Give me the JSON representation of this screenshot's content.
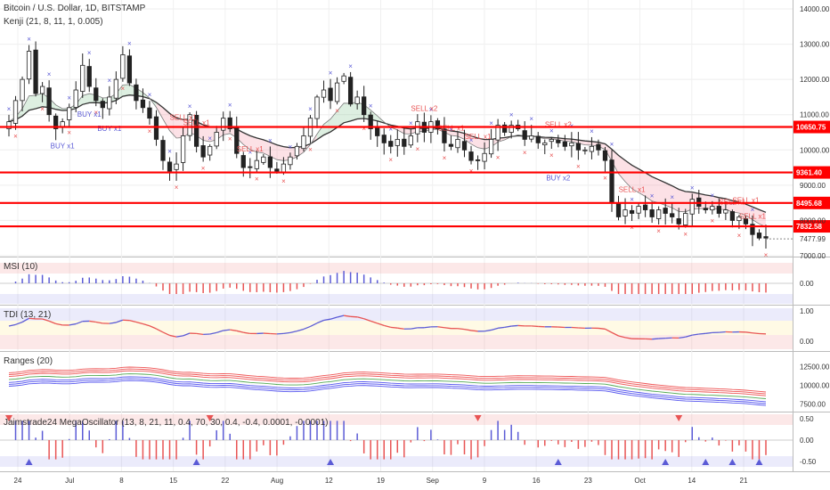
{
  "chart_data": {
    "type": "candlestick",
    "title": "Bitcoin / U.S. Dollar, 1D, BITSTAMP",
    "indicator_label": "Kenji (21, 8, 11, 1, 0.005)",
    "x_ticks": [
      "24",
      "Jul",
      "8",
      "15",
      "22",
      "Aug",
      "12",
      "19",
      "Sep",
      "9",
      "16",
      "23",
      "Oct",
      "14",
      "21"
    ],
    "y_ticks": [
      "14000.00",
      "13000.00",
      "12000.00",
      "11000.00",
      "10000.00",
      "9000.00",
      "8000.00",
      "7000.00"
    ],
    "ylim": [
      7000,
      14000
    ],
    "current_price": "7477.99",
    "levels": [
      "10650.75",
      "9361.40",
      "8495.68",
      "7832.58"
    ],
    "colors": {
      "up": "#26a69a",
      "down": "#222222",
      "level": "#ff0000",
      "buy": "#5b5bd6",
      "sell": "#e85454"
    },
    "signal_texts": {
      "buy": [
        "BUY x1",
        "BUY x1",
        "BUY x1",
        "BUY x2"
      ],
      "sell": [
        "SELL x1",
        "SELL x1",
        "SELL x1",
        "SELL x2",
        "SELL x1",
        "SELL x1",
        "SELL x2",
        "SELL x1",
        "SELL x1",
        "SELL x1",
        "SELL x1"
      ]
    },
    "panes": [
      {
        "name": "MSI (10)",
        "y_ticks": [
          "0.00"
        ]
      },
      {
        "name": "TDI (13, 21)",
        "y_ticks": [
          "1.00",
          "0.00"
        ]
      },
      {
        "name": "Ranges (20)",
        "y_ticks": [
          "12500.00",
          "10000.00",
          "7500.00"
        ]
      },
      {
        "name": "Jaimstrade24 MegaOscillator (13, 8, 21, 11, 0.4, 70, 30, 0.4, -0.4, 0.0001, -0.0001)",
        "y_ticks": [
          "0.50",
          "0.00",
          "-0.50"
        ]
      }
    ],
    "series": {
      "close": [
        10800,
        11400,
        12000,
        12800,
        11600,
        11800,
        11000,
        10600,
        10800,
        11200,
        11700,
        12400,
        11800,
        11400,
        11200,
        11500,
        12000,
        12700,
        11900,
        11400,
        11200,
        10900,
        10300,
        9700,
        9400,
        9600,
        10400,
        11000,
        10100,
        9800,
        10100,
        10500,
        10900,
        10600,
        9900,
        9500,
        9500,
        9700,
        9800,
        9500,
        9400,
        9600,
        9800,
        10100,
        10400,
        10900,
        11500,
        11700,
        11400,
        11900,
        12100,
        11300,
        11500,
        11000,
        10600,
        10400,
        10200,
        10100,
        10300,
        10100,
        10400,
        10800,
        10500,
        10800,
        10600,
        10200,
        10100,
        10300,
        10000,
        9700,
        9700,
        9900,
        10300,
        10700,
        10500,
        10700,
        10600,
        10300,
        10400,
        10200,
        10200,
        10300,
        10200,
        10100,
        10200,
        10000,
        10000,
        10100,
        10000,
        9700,
        8500,
        8100,
        8300,
        8200,
        8400,
        8300,
        8100,
        8300,
        8200,
        8100,
        7900,
        8200,
        8600,
        8400,
        8300,
        8400,
        8200,
        8300,
        8000,
        8100,
        7900,
        7600,
        7500,
        7500
      ]
    }
  }
}
